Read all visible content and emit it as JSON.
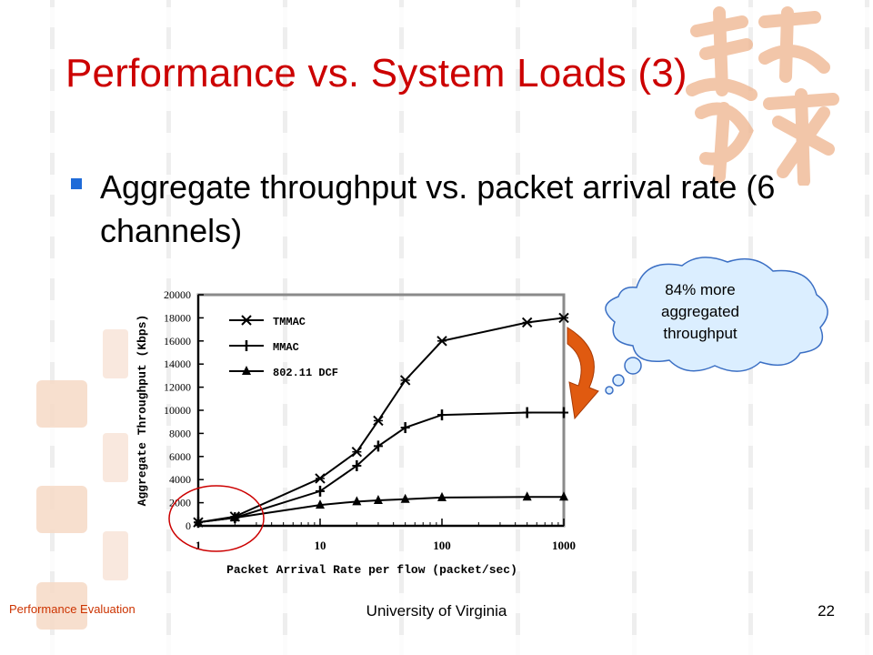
{
  "slide": {
    "title": "Performance vs. System Loads (3)",
    "bullet": "Aggregate throughput vs. packet arrival rate (6 channels)",
    "callout": "84% more aggregated throughput",
    "footer_left": "Performance Evaluation",
    "footer_center": "University of Virginia",
    "page_number": "22"
  },
  "colors": {
    "title": "#cc0000",
    "bullet": "#1f6bd8",
    "cloud_fill": "#dbeeff",
    "cloud_stroke": "#3b6fc4",
    "arrow": "#e05a10",
    "highlight_circle": "#cc0000",
    "decoration": "#e9a77a"
  },
  "chart_data": {
    "type": "line",
    "title": "",
    "xlabel": "Packet Arrival Rate per flow (packet/sec)",
    "ylabel": "Aggregate Throughput (Kbps)",
    "xscale": "log",
    "xlim": [
      1,
      1000
    ],
    "ylim": [
      0,
      20000
    ],
    "xticks": [
      "1",
      "10",
      "100",
      "1000"
    ],
    "yticks": [
      "0",
      "2000",
      "4000",
      "6000",
      "8000",
      "10000",
      "12000",
      "14000",
      "16000",
      "18000",
      "20000"
    ],
    "legend_position": "top-left",
    "x": [
      1,
      2,
      10,
      20,
      30,
      50,
      100,
      500,
      1000
    ],
    "series": [
      {
        "name": "TMMAC",
        "marker": "x",
        "values": [
          300,
          800,
          4100,
          6400,
          9100,
          12600,
          16000,
          17600,
          18000
        ]
      },
      {
        "name": "MMAC",
        "marker": "plus",
        "values": [
          300,
          700,
          3000,
          5200,
          6900,
          8500,
          9600,
          9800,
          9800
        ]
      },
      {
        "name": "802.11 DCF",
        "marker": "triangle",
        "values": [
          300,
          700,
          1800,
          2100,
          2200,
          2300,
          2450,
          2500,
          2500
        ]
      }
    ]
  }
}
